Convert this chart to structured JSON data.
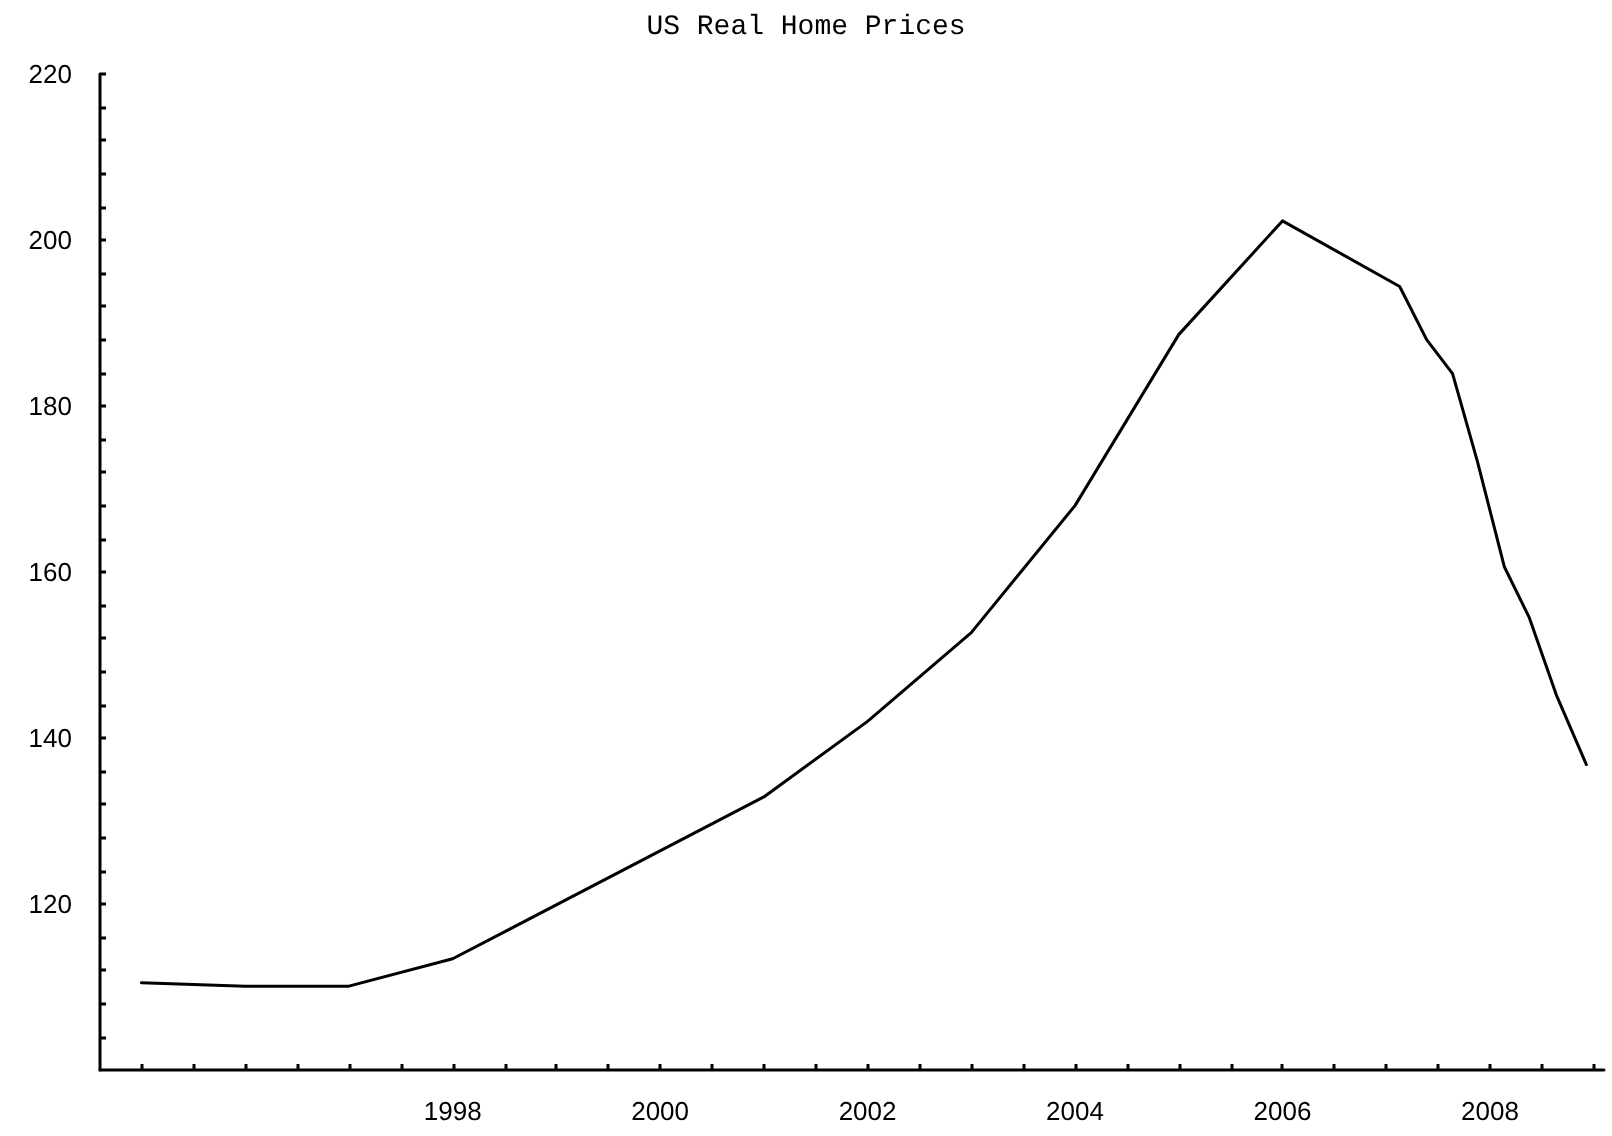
{
  "chart_data": {
    "type": "line",
    "title": "US Real Home Prices",
    "series": [
      {
        "color": "#000000",
        "x": [
          1995,
          1996,
          1997,
          1998,
          2001,
          2002,
          2003,
          2004,
          2005,
          2006,
          2007.13,
          2007.39,
          2007.64,
          2007.88,
          2008.14,
          2008.38,
          2008.64,
          2008.93
        ],
        "values": [
          110.5,
          110.1,
          110.1,
          113.4,
          132.9,
          142,
          152.7,
          168,
          188.6,
          202.3,
          194.4,
          188,
          183.9,
          173.3,
          160.6,
          154.5,
          145.2,
          136.8
        ]
      }
    ],
    "xlim": [
      1994.6,
      2009.1
    ],
    "xticks": [
      {
        "value": 1995,
        "label": null
      },
      {
        "value": 1995.5,
        "label": null
      },
      {
        "value": 1996,
        "label": null
      },
      {
        "value": 1996.5,
        "label": null
      },
      {
        "value": 1997,
        "label": null
      },
      {
        "value": 1997.5,
        "label": null
      },
      1998,
      {
        "value": 1998.5,
        "label": null
      },
      {
        "value": 1999,
        "label": null
      },
      {
        "value": 1999.5,
        "label": null
      },
      2000,
      {
        "value": 2000.5,
        "label": null
      },
      {
        "value": 2001,
        "label": null
      },
      {
        "value": 2001.5,
        "label": null
      },
      2002,
      {
        "value": 2002.5,
        "label": null
      },
      {
        "value": 2003,
        "label": null
      },
      {
        "value": 2003.5,
        "label": null
      },
      2004,
      {
        "value": 2004.5,
        "label": null
      },
      {
        "value": 2005,
        "label": null
      },
      {
        "value": 2005.5,
        "label": null
      },
      2006,
      {
        "value": 2006.5,
        "label": null
      },
      {
        "value": 2007,
        "label": null
      },
      {
        "value": 2007.5,
        "label": null
      },
      2008,
      {
        "value": 2008.5,
        "label": null
      },
      {
        "value": 2009,
        "label": null
      }
    ],
    "ylim": [
      100,
      220
    ],
    "yticks": [
      {
        "value": 104,
        "label": null
      },
      {
        "value": 108,
        "label": null
      },
      {
        "value": 112,
        "label": null
      },
      {
        "value": 116,
        "label": null
      },
      120,
      {
        "value": 124,
        "label": null
      },
      {
        "value": 128,
        "label": null
      },
      {
        "value": 132,
        "label": null
      },
      {
        "value": 136,
        "label": null
      },
      140,
      {
        "value": 144,
        "label": null
      },
      {
        "value": 148,
        "label": null
      },
      {
        "value": 152,
        "label": null
      },
      {
        "value": 156,
        "label": null
      },
      160,
      {
        "value": 164,
        "label": null
      },
      {
        "value": 168,
        "label": null
      },
      {
        "value": 172,
        "label": null
      },
      {
        "value": 176,
        "label": null
      },
      180,
      {
        "value": 184,
        "label": null
      },
      {
        "value": 188,
        "label": null
      },
      {
        "value": 192,
        "label": null
      },
      {
        "value": 196,
        "label": null
      },
      200,
      {
        "value": 204,
        "label": null
      },
      {
        "value": 208,
        "label": null
      },
      {
        "value": 212,
        "label": null
      },
      {
        "value": 216,
        "label": null
      },
      220
    ],
    "grid": false,
    "marker": "none",
    "line_style": "solid"
  }
}
